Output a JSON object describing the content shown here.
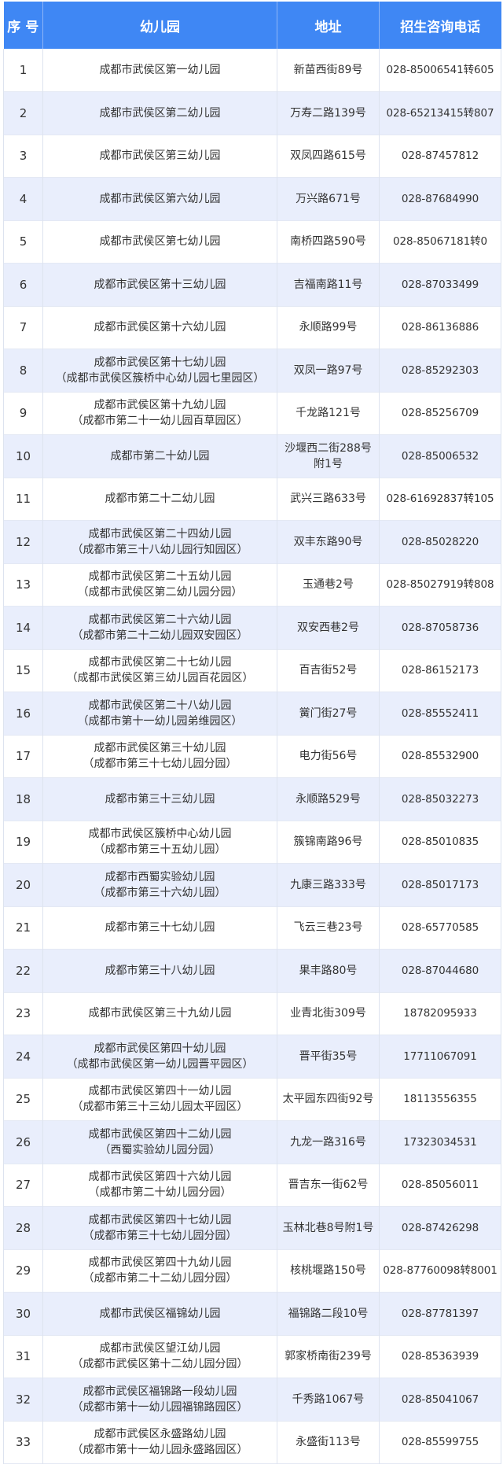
{
  "colors": {
    "header_bg": "#3f87f4",
    "header_text": "#ffffff",
    "stripe": "#e9eefc"
  },
  "header": {
    "index": "序 号",
    "kindergarten": "幼儿园",
    "address": "地址",
    "phone": "招生咨询电话"
  },
  "rows": [
    {
      "no": "1",
      "name": [
        "成都市武侯区第一幼儿园"
      ],
      "address": [
        "新苗西街89号"
      ],
      "phone": "028-85006541转605"
    },
    {
      "no": "2",
      "name": [
        "成都市武侯区第二幼儿园"
      ],
      "address": [
        "万寿二路139号"
      ],
      "phone": "028-65213415转807"
    },
    {
      "no": "3",
      "name": [
        "成都市武侯区第三幼儿园"
      ],
      "address": [
        "双凤四路615号"
      ],
      "phone": "028-87457812"
    },
    {
      "no": "4",
      "name": [
        "成都市武侯区第六幼儿园"
      ],
      "address": [
        "万兴路671号"
      ],
      "phone": "028-87684990"
    },
    {
      "no": "5",
      "name": [
        "成都市武侯区第七幼儿园"
      ],
      "address": [
        "南桥四路590号"
      ],
      "phone": "028-85067181转0"
    },
    {
      "no": "6",
      "name": [
        "成都市武侯区第十三幼儿园"
      ],
      "address": [
        "吉福南路11号"
      ],
      "phone": "028-87033499"
    },
    {
      "no": "7",
      "name": [
        "成都市武侯区第十六幼儿园"
      ],
      "address": [
        "永顺路99号"
      ],
      "phone": "028-86136886"
    },
    {
      "no": "8",
      "name": [
        "成都市武侯区第十七幼儿园",
        "（成都市武侯区簇桥中心幼儿园七里园区）"
      ],
      "address": [
        "双凤一路97号"
      ],
      "phone": "028-85292303"
    },
    {
      "no": "9",
      "name": [
        "成都市武侯区第十九幼儿园",
        "（成都市第二十一幼儿园百草园区）"
      ],
      "address": [
        "千龙路121号"
      ],
      "phone": "028-85256709"
    },
    {
      "no": "10",
      "name": [
        "成都市第二十幼儿园"
      ],
      "address": [
        "沙堰西二街288号",
        "附1号"
      ],
      "phone": "028-85006532"
    },
    {
      "no": "11",
      "name": [
        "成都市第二十二幼儿园"
      ],
      "address": [
        "武兴三路633号"
      ],
      "phone": "028-61692837转105"
    },
    {
      "no": "12",
      "name": [
        "成都市武侯区第二十四幼儿园",
        "（成都市第三十八幼儿园行知园区）"
      ],
      "address": [
        "双丰东路90号"
      ],
      "phone": "028-85028220"
    },
    {
      "no": "13",
      "name": [
        "成都市武侯区第二十五幼儿园",
        "（成都市武侯区第二幼儿园分园）"
      ],
      "address": [
        "玉通巷2号"
      ],
      "phone": "028-85027919转808"
    },
    {
      "no": "14",
      "name": [
        "成都市武侯区第二十六幼儿园",
        "（成都市第二十二幼儿园双安园区）"
      ],
      "address": [
        "双安西巷2号"
      ],
      "phone": "028-87058736"
    },
    {
      "no": "15",
      "name": [
        "成都市武侯区第二十七幼儿园",
        "（成都市武侯区第三幼儿园百花园区）"
      ],
      "address": [
        "百吉街52号"
      ],
      "phone": "028-86152173"
    },
    {
      "no": "16",
      "name": [
        "成都市武侯区第二十八幼儿园",
        "（成都市第十一幼儿园弟维园区）"
      ],
      "address": [
        "黉门街27号"
      ],
      "phone": "028-85552411"
    },
    {
      "no": "17",
      "name": [
        "成都市武侯区第三十幼儿园",
        "（成都市第三十七幼儿园分园）"
      ],
      "address": [
        "电力街56号"
      ],
      "phone": "028-85532900"
    },
    {
      "no": "18",
      "name": [
        "成都市第三十三幼儿园"
      ],
      "address": [
        "永顺路529号"
      ],
      "phone": "028-85032273"
    },
    {
      "no": "19",
      "name": [
        "成都市武侯区簇桥中心幼儿园",
        "（成都市第三十五幼儿园）"
      ],
      "address": [
        "簇锦南路96号"
      ],
      "phone": "028-85010835"
    },
    {
      "no": "20",
      "name": [
        "成都市西蜀实验幼儿园",
        "（成都市第三十六幼儿园）"
      ],
      "address": [
        "九康三路333号"
      ],
      "phone": "028-85017173"
    },
    {
      "no": "21",
      "name": [
        "成都市第三十七幼儿园"
      ],
      "address": [
        "飞云三巷23号"
      ],
      "phone": "028-65770585"
    },
    {
      "no": "22",
      "name": [
        "成都市第三十八幼儿园"
      ],
      "address": [
        "果丰路80号"
      ],
      "phone": "028-87044680"
    },
    {
      "no": "23",
      "name": [
        "成都市武侯区第三十九幼儿园"
      ],
      "address": [
        "业青北街309号"
      ],
      "phone": "18782095933"
    },
    {
      "no": "24",
      "name": [
        "成都市武侯区第四十幼儿园",
        "（成都市武侯区第一幼儿园晋平园区）"
      ],
      "address": [
        "晋平街35号"
      ],
      "phone": "17711067091"
    },
    {
      "no": "25",
      "name": [
        "成都市武侯区第四十一幼儿园",
        "（成都市第三十三幼儿园太平园区）"
      ],
      "address": [
        "太平园东四街92号"
      ],
      "phone": "18113556355"
    },
    {
      "no": "26",
      "name": [
        "成都市武侯区第四十二幼儿园",
        "（西蜀实验幼儿园分园）"
      ],
      "address": [
        "九龙一路316号"
      ],
      "phone": "17323034531"
    },
    {
      "no": "27",
      "name": [
        "成都市武侯区第四十六幼儿园",
        "（成都市第二十幼儿园分园）"
      ],
      "address": [
        "晋吉东一街62号"
      ],
      "phone": "028-85056011"
    },
    {
      "no": "28",
      "name": [
        "成都市武侯区第四十七幼儿园",
        "（成都市第三十七幼儿园分园）"
      ],
      "address": [
        "玉林北巷8号附1号"
      ],
      "phone": "028-87426298"
    },
    {
      "no": "29",
      "name": [
        "成都市武侯区第四十九幼儿园",
        "（成都市第二十二幼儿园分园）"
      ],
      "address": [
        "核桃堰路150号"
      ],
      "phone": "028-87760098转8001"
    },
    {
      "no": "30",
      "name": [
        "成都市武侯区福锦幼儿园"
      ],
      "address": [
        "福锦路二段10号"
      ],
      "phone": "028-87781397"
    },
    {
      "no": "31",
      "name": [
        "成都市武侯区望江幼儿园",
        "（成都市武侯区第十二幼儿园分园）"
      ],
      "address": [
        "郭家桥南街239号"
      ],
      "phone": "028-85363939"
    },
    {
      "no": "32",
      "name": [
        "成都市武侯区福锦路一段幼儿园",
        "（成都市第十一幼儿园福锦路园区）"
      ],
      "address": [
        "千秀路1067号"
      ],
      "phone": "028-85041067"
    },
    {
      "no": "33",
      "name": [
        "成都市武侯区永盛路幼儿园",
        "（成都市第十一幼儿园永盛路园区）"
      ],
      "address": [
        "永盛街113号"
      ],
      "phone": "028-85599755"
    }
  ]
}
